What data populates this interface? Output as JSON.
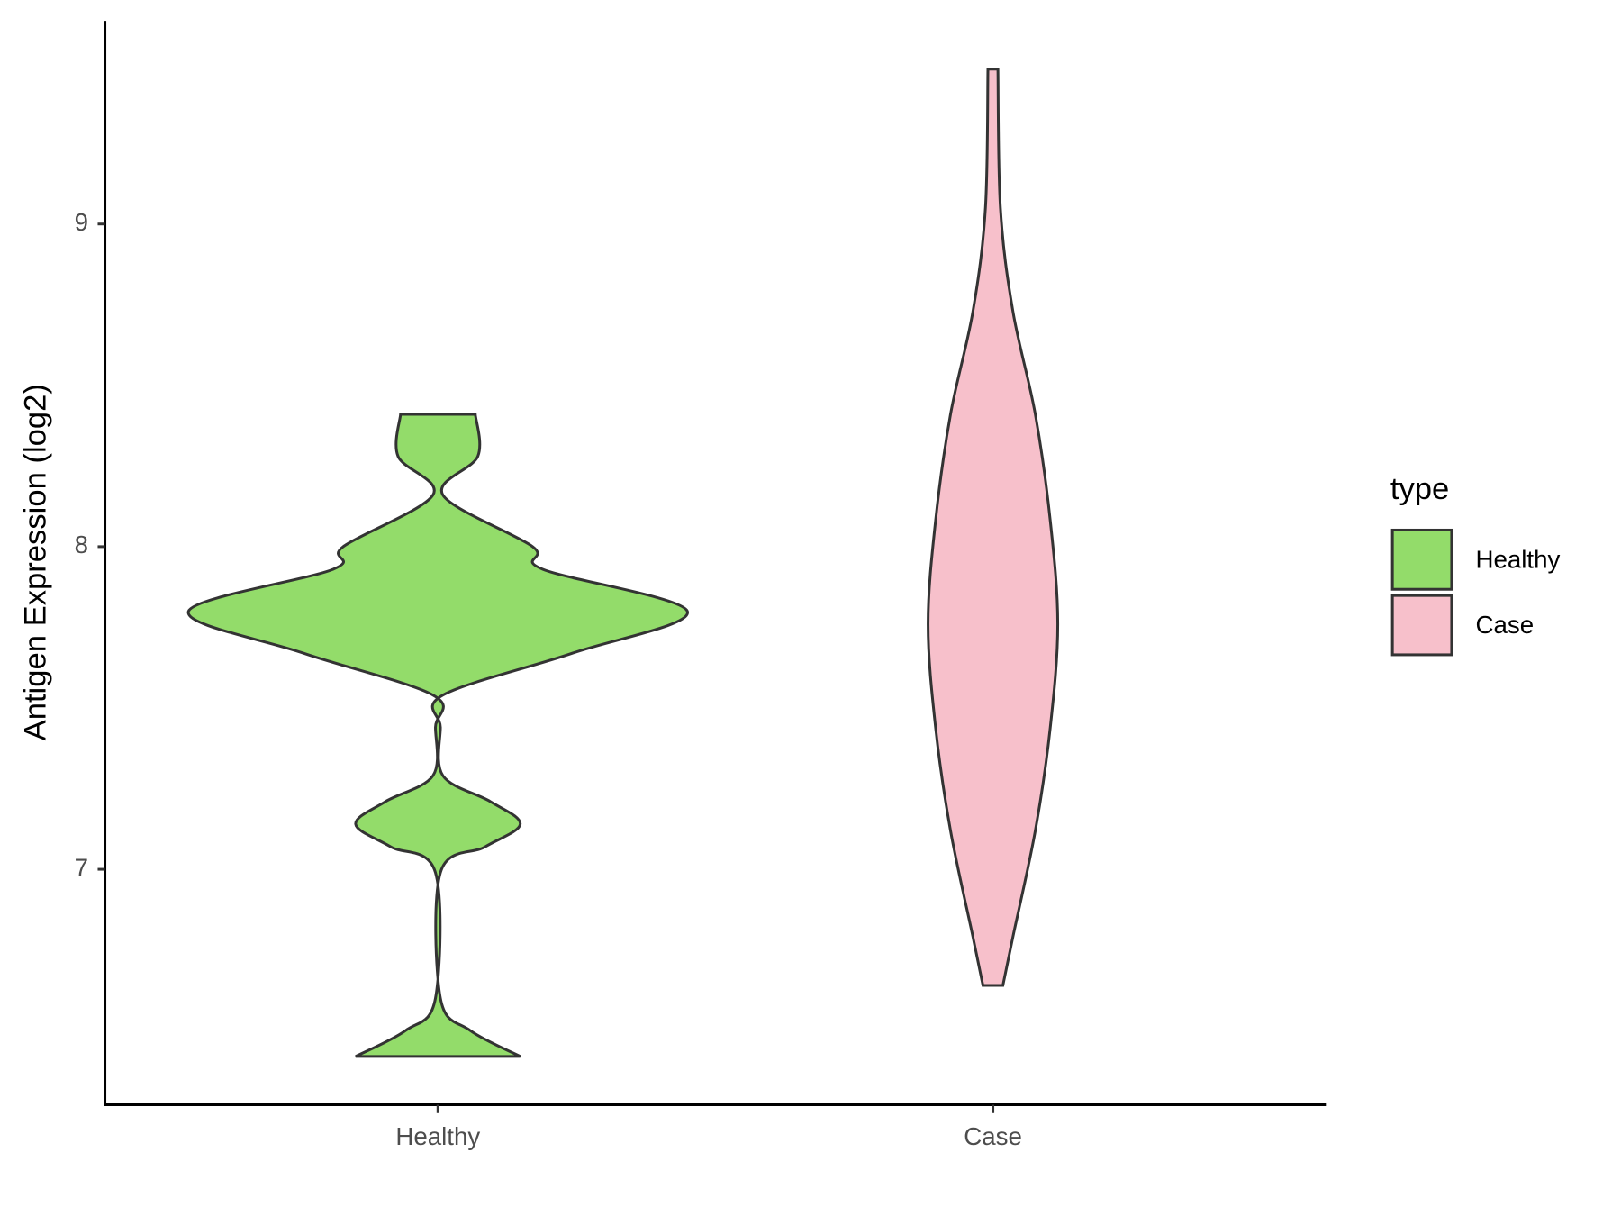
{
  "chart_data": {
    "type": "violin",
    "y_label": "Antigen Expression (log2)",
    "categories": [
      "Healthy",
      "Case"
    ],
    "ylim": [
      6.27,
      9.63
    ],
    "yticks": [
      7,
      8,
      9
    ],
    "legend": {
      "title": "type",
      "position": "right"
    },
    "series": [
      {
        "name": "Healthy",
        "color": "#93dc6a",
        "y": [
          8.41,
          8.28,
          8.16,
          8.0,
          7.93,
          7.8,
          7.67,
          7.54,
          7.44,
          7.29,
          7.21,
          7.14,
          7.07,
          6.99,
          6.6,
          6.5,
          6.42
        ],
        "density": [
          0.15,
          0.16,
          0.02,
          0.38,
          0.42,
          1.0,
          0.54,
          0.02,
          0.01,
          0.02,
          0.21,
          0.33,
          0.19,
          0.01,
          0.01,
          0.13,
          0.33
        ]
      },
      {
        "name": "Case",
        "color": "#f7c0cb",
        "y": [
          9.48,
          9.05,
          8.73,
          8.41,
          8.08,
          7.76,
          7.44,
          7.12,
          6.79,
          6.64
        ],
        "density": [
          0.02,
          0.03,
          0.08,
          0.17,
          0.23,
          0.26,
          0.23,
          0.17,
          0.08,
          0.04
        ]
      }
    ]
  }
}
